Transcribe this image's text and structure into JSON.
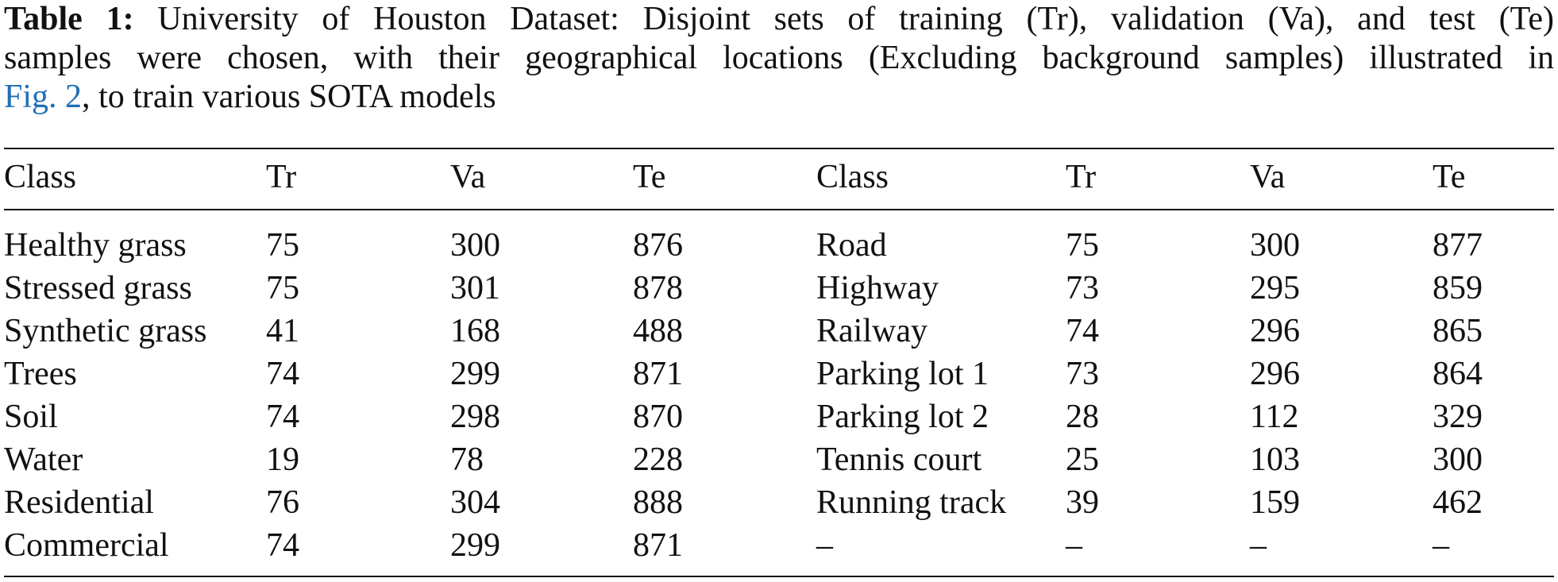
{
  "caption": {
    "label": "Table 1:",
    "line1": "University of Houston Dataset: Disjoint sets of training (Tr), validation (Va), and test (Te)",
    "line2": "samples were chosen, with their geographical locations (Excluding background samples) illustrated in",
    "link": "Fig. 2",
    "line3": ", to train various SOTA models"
  },
  "table": {
    "header": [
      "Class",
      "Tr",
      "Va",
      "Te",
      "Class",
      "Tr",
      "Va",
      "Te"
    ],
    "rows": [
      [
        "Healthy grass",
        "75",
        "300",
        "876",
        "Road",
        "75",
        "300",
        "877"
      ],
      [
        "Stressed grass",
        "75",
        "301",
        "878",
        "Highway",
        "73",
        "295",
        "859"
      ],
      [
        "Synthetic grass",
        "41",
        "168",
        "488",
        "Railway",
        "74",
        "296",
        "865"
      ],
      [
        "Trees",
        "74",
        "299",
        "871",
        "Parking lot 1",
        "73",
        "296",
        "864"
      ],
      [
        "Soil",
        "74",
        "298",
        "870",
        "Parking lot 2",
        "28",
        "112",
        "329"
      ],
      [
        "Water",
        "19",
        "78",
        "228",
        "Tennis court",
        "25",
        "103",
        "300"
      ],
      [
        "Residential",
        "76",
        "304",
        "888",
        "Running track",
        "39",
        "159",
        "462"
      ],
      [
        "Commercial",
        "74",
        "299",
        "871",
        "–",
        "–",
        "–",
        "–"
      ]
    ]
  }
}
